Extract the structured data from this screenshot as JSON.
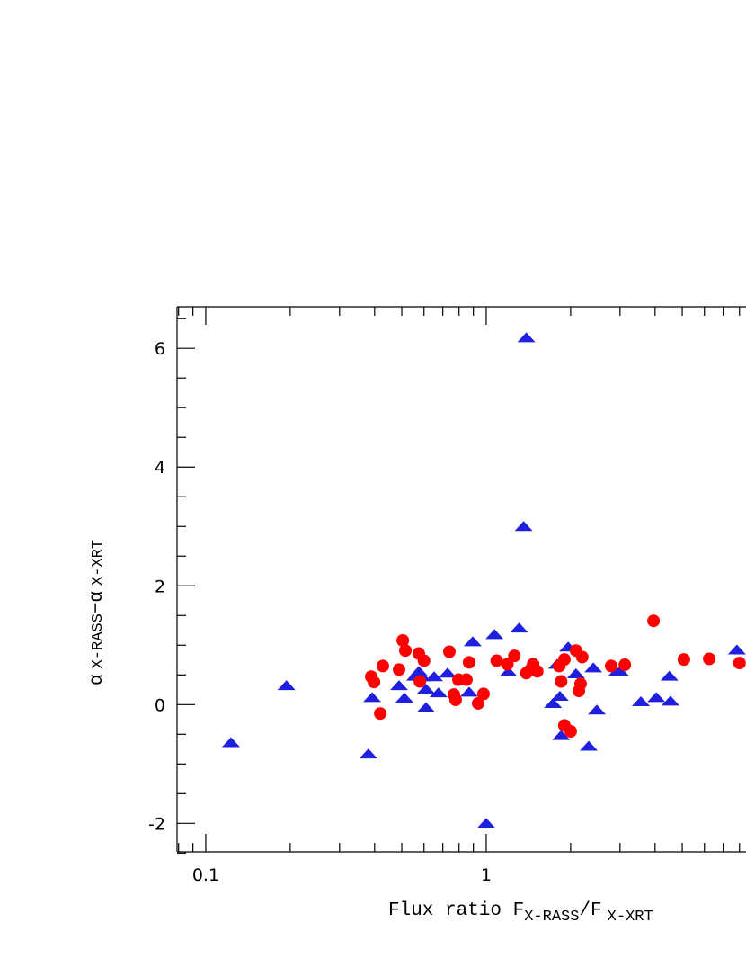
{
  "chart_data": {
    "type": "scatter",
    "xlabel_parts": [
      "Flux ratio F",
      "X-RASS",
      "/F",
      "X-XRT"
    ],
    "ylabel_parts": [
      "α",
      "X-RASS",
      "−α",
      "X-XRT"
    ],
    "xscale": "log",
    "xlim": [
      0.079,
      8.44
    ],
    "ylim": [
      -2.48,
      6.7
    ],
    "xticks": [
      0.1,
      1
    ],
    "xminorticks": [
      0.08,
      0.09,
      0.2,
      0.3,
      0.4,
      0.5,
      0.6,
      0.7,
      0.8,
      0.9,
      2,
      3,
      4,
      5,
      6,
      7,
      8
    ],
    "yticks": [
      -2,
      0,
      2,
      4,
      6
    ],
    "yminorticks": [
      -2.5,
      -1.5,
      -1,
      -0.5,
      0.5,
      1,
      1.5,
      2.5,
      3,
      3.5,
      4.5,
      5,
      5.5,
      6.5
    ],
    "series": [
      {
        "marker": "triangle",
        "color": "#1f1fe0",
        "x": [
          0.123,
          0.194,
          0.38,
          0.392,
          0.489,
          0.511,
          0.558,
          0.575,
          0.59,
          0.61,
          0.61,
          0.652,
          0.676,
          0.728,
          0.869,
          0.895,
          1.0,
          1.07,
          1.2,
          1.31,
          1.36,
          1.39,
          1.73,
          1.79,
          1.83,
          1.85,
          1.96,
          2.09,
          2.32,
          2.41,
          2.48,
          2.92,
          3.0,
          3.56,
          4.04,
          4.5,
          4.54,
          7.83
        ],
        "values": [
          -0.64,
          0.32,
          -0.83,
          0.12,
          0.32,
          0.11,
          0.48,
          0.56,
          0.47,
          -0.05,
          0.26,
          0.47,
          0.2,
          0.53,
          0.21,
          1.06,
          -2.0,
          1.18,
          0.55,
          1.29,
          3.0,
          6.18,
          0.02,
          0.68,
          0.14,
          -0.52,
          0.97,
          0.52,
          -0.7,
          0.62,
          -0.09,
          0.55,
          0.56,
          0.05,
          0.12,
          0.48,
          0.06,
          0.92
        ]
      },
      {
        "marker": "circle",
        "color": "#ff0000",
        "x": [
          0.389,
          0.398,
          0.419,
          0.428,
          0.489,
          0.504,
          0.515,
          0.575,
          0.58,
          0.6,
          0.739,
          0.767,
          0.778,
          0.796,
          0.85,
          0.869,
          0.936,
          0.978,
          1.09,
          1.19,
          1.26,
          1.39,
          1.44,
          1.47,
          1.52,
          1.82,
          1.85,
          1.9,
          1.9,
          2.0,
          2.09,
          2.14,
          2.17,
          2.2,
          2.79,
          3.12,
          3.95,
          5.07,
          6.24,
          8.0
        ],
        "values": [
          0.47,
          0.38,
          -0.15,
          0.65,
          0.59,
          1.08,
          0.91,
          0.86,
          0.39,
          0.74,
          0.89,
          0.17,
          0.08,
          0.42,
          0.42,
          0.71,
          0.02,
          0.18,
          0.74,
          0.68,
          0.82,
          0.53,
          0.59,
          0.68,
          0.56,
          0.65,
          0.39,
          0.76,
          -0.35,
          -0.45,
          0.91,
          0.23,
          0.35,
          0.8,
          0.65,
          0.67,
          1.41,
          0.76,
          0.77,
          0.7
        ]
      }
    ]
  }
}
